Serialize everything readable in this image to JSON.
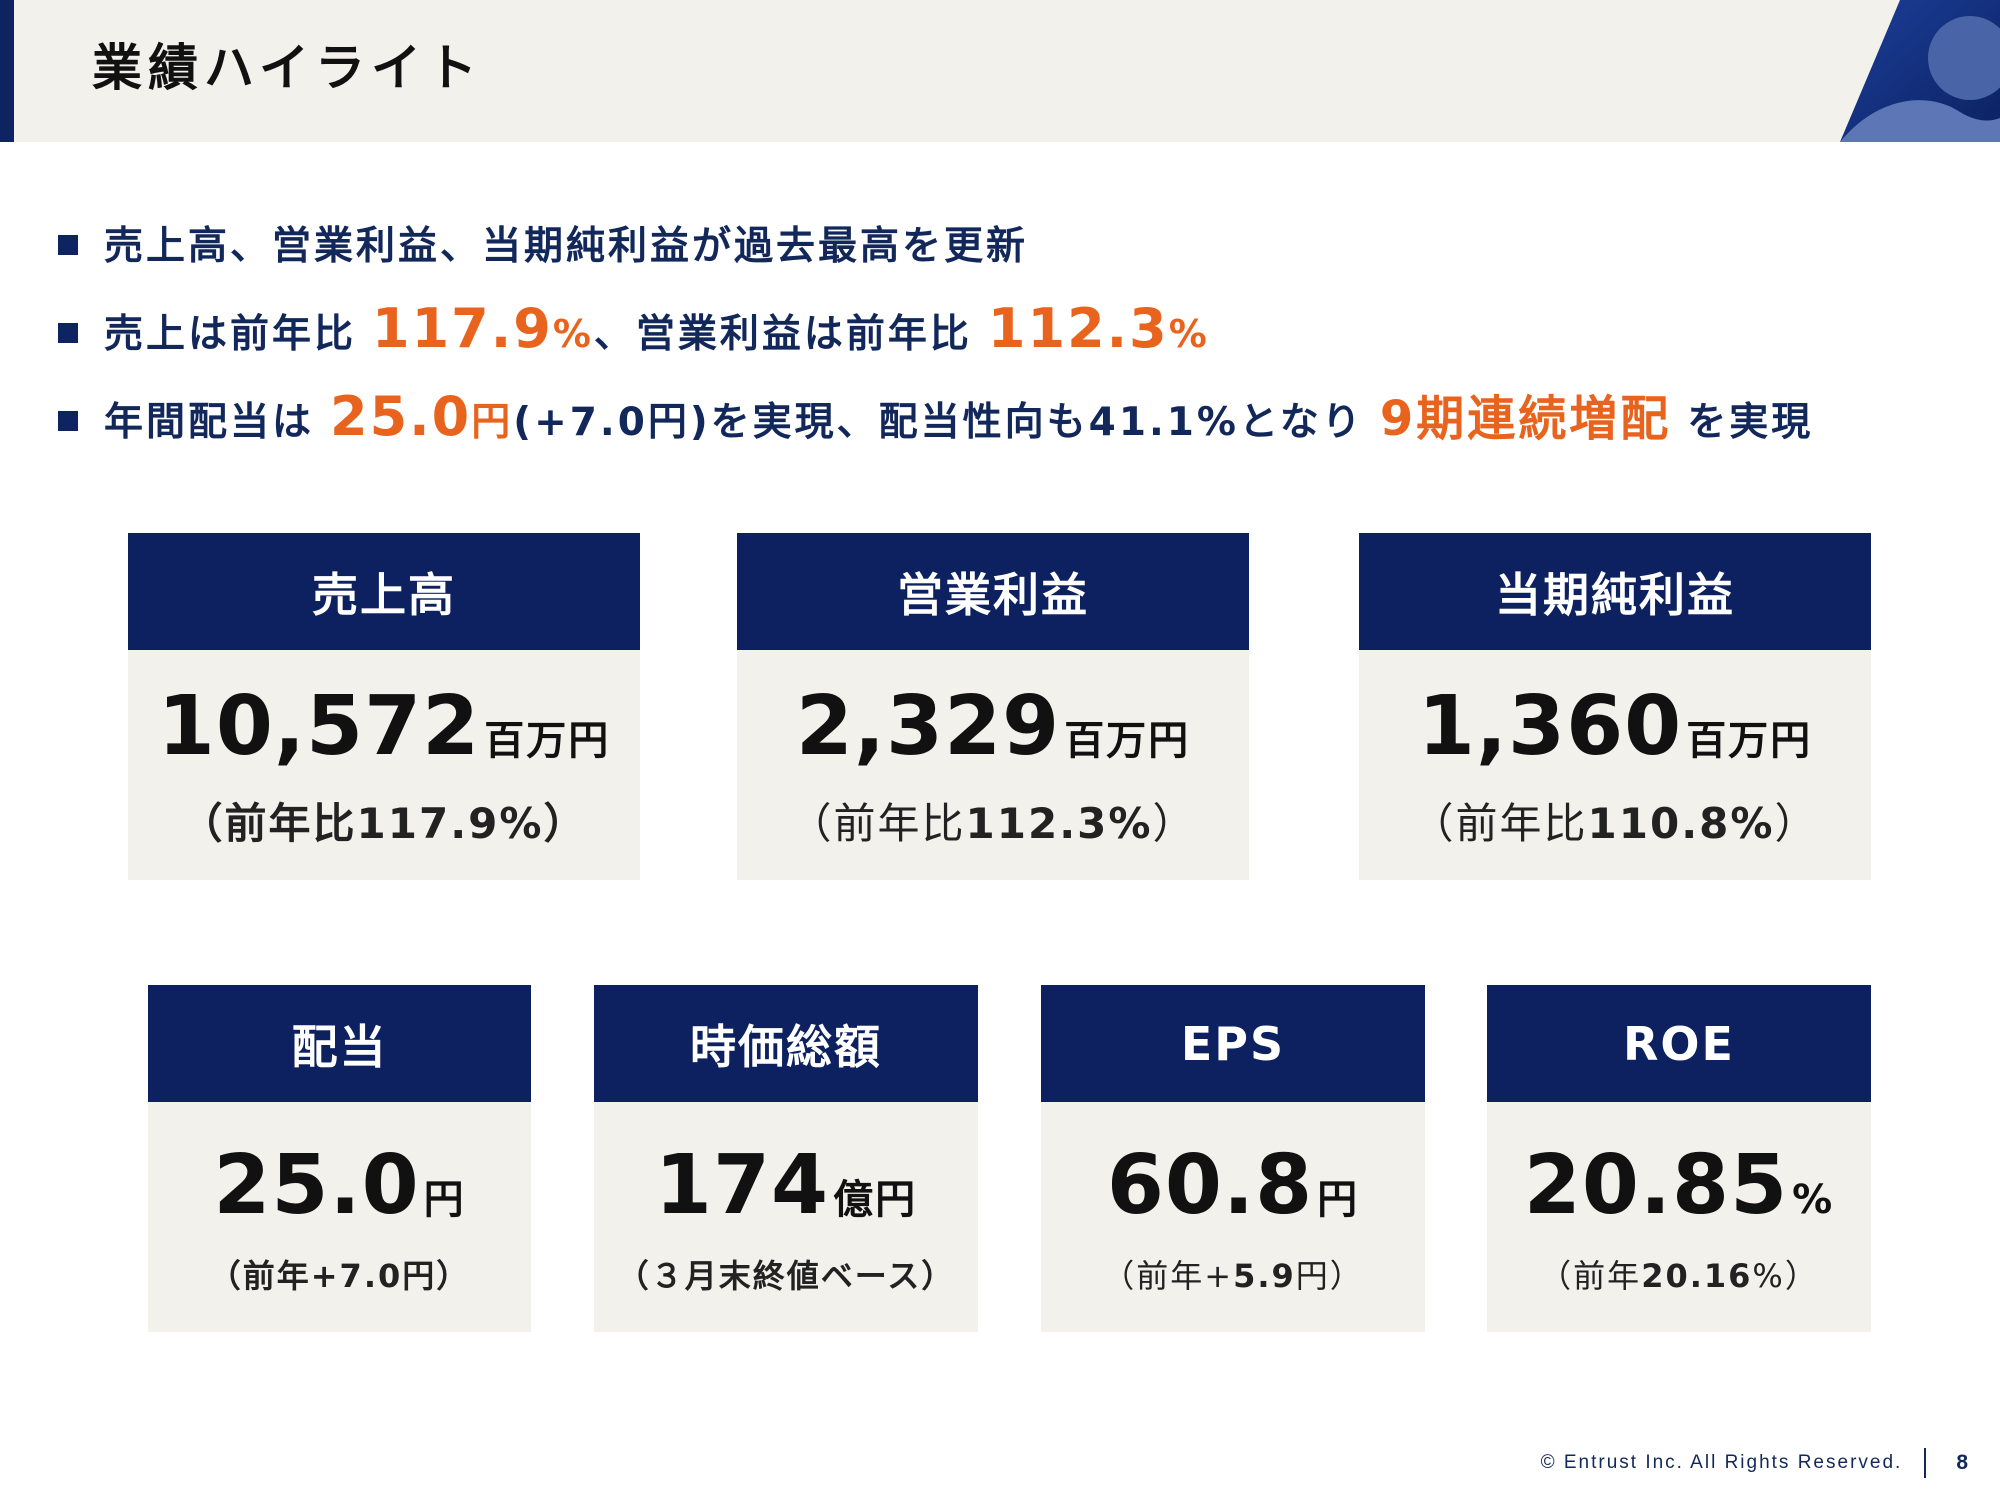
{
  "header": {
    "title": "業績ハイライト"
  },
  "bullets": {
    "b1": {
      "text": "売上高、営業利益、当期純利益が過去最高を更新"
    },
    "b2": {
      "prefix": "売上は前年比",
      "value1": "117.9",
      "pct1": "%",
      "middle": "、営業利益は前年比",
      "value2": "112.3",
      "pct2": "%"
    },
    "b3": {
      "prefix": "年間配当は",
      "value": "25.0",
      "unit": "円",
      "middle": "(+7.0円)を実現、配当性向も41.1%となり",
      "highlight": "9期連続増配",
      "suffix": "を実現"
    }
  },
  "cards": {
    "sales": {
      "label": "売上高",
      "value": "10,572",
      "unit": "百万円",
      "sub_paren_open": "（",
      "sub_text": "前年比117.9%",
      "sub_paren_close": "）"
    },
    "operating": {
      "label": "営業利益",
      "value": "2,329",
      "unit": "百万円",
      "sub_prefix": "（前年比",
      "sub_value": "112.3%",
      "sub_suffix": "）"
    },
    "net": {
      "label": "当期純利益",
      "value": "1,360",
      "unit": "百万円",
      "sub_prefix": "（前年比",
      "sub_value": "110.8%",
      "sub_suffix": "）"
    },
    "dividend": {
      "label": "配当",
      "value": "25.0",
      "unit": "円",
      "sub": "（前年+7.0円）"
    },
    "market_cap": {
      "label": "時価総額",
      "value": "174",
      "unit": "億円",
      "sub": "（３月末終値ベース）"
    },
    "eps": {
      "label": "EPS",
      "value": "60.8",
      "unit": "円",
      "sub_prefix": "（前年+",
      "sub_value": "5.9",
      "sub_suffix": "円）"
    },
    "roe": {
      "label": "ROE",
      "value": "20.85",
      "unit": "%",
      "sub_prefix": "（前年",
      "sub_value": "20.16",
      "sub_suffix": "%）"
    }
  },
  "footer": {
    "copyright": "© Entrust Inc. All Rights Reserved.",
    "page": "8"
  },
  "colors": {
    "navy": "#0d2160",
    "orange": "#e8641e",
    "panel": "#f3f1ec",
    "text": "#13285a"
  }
}
